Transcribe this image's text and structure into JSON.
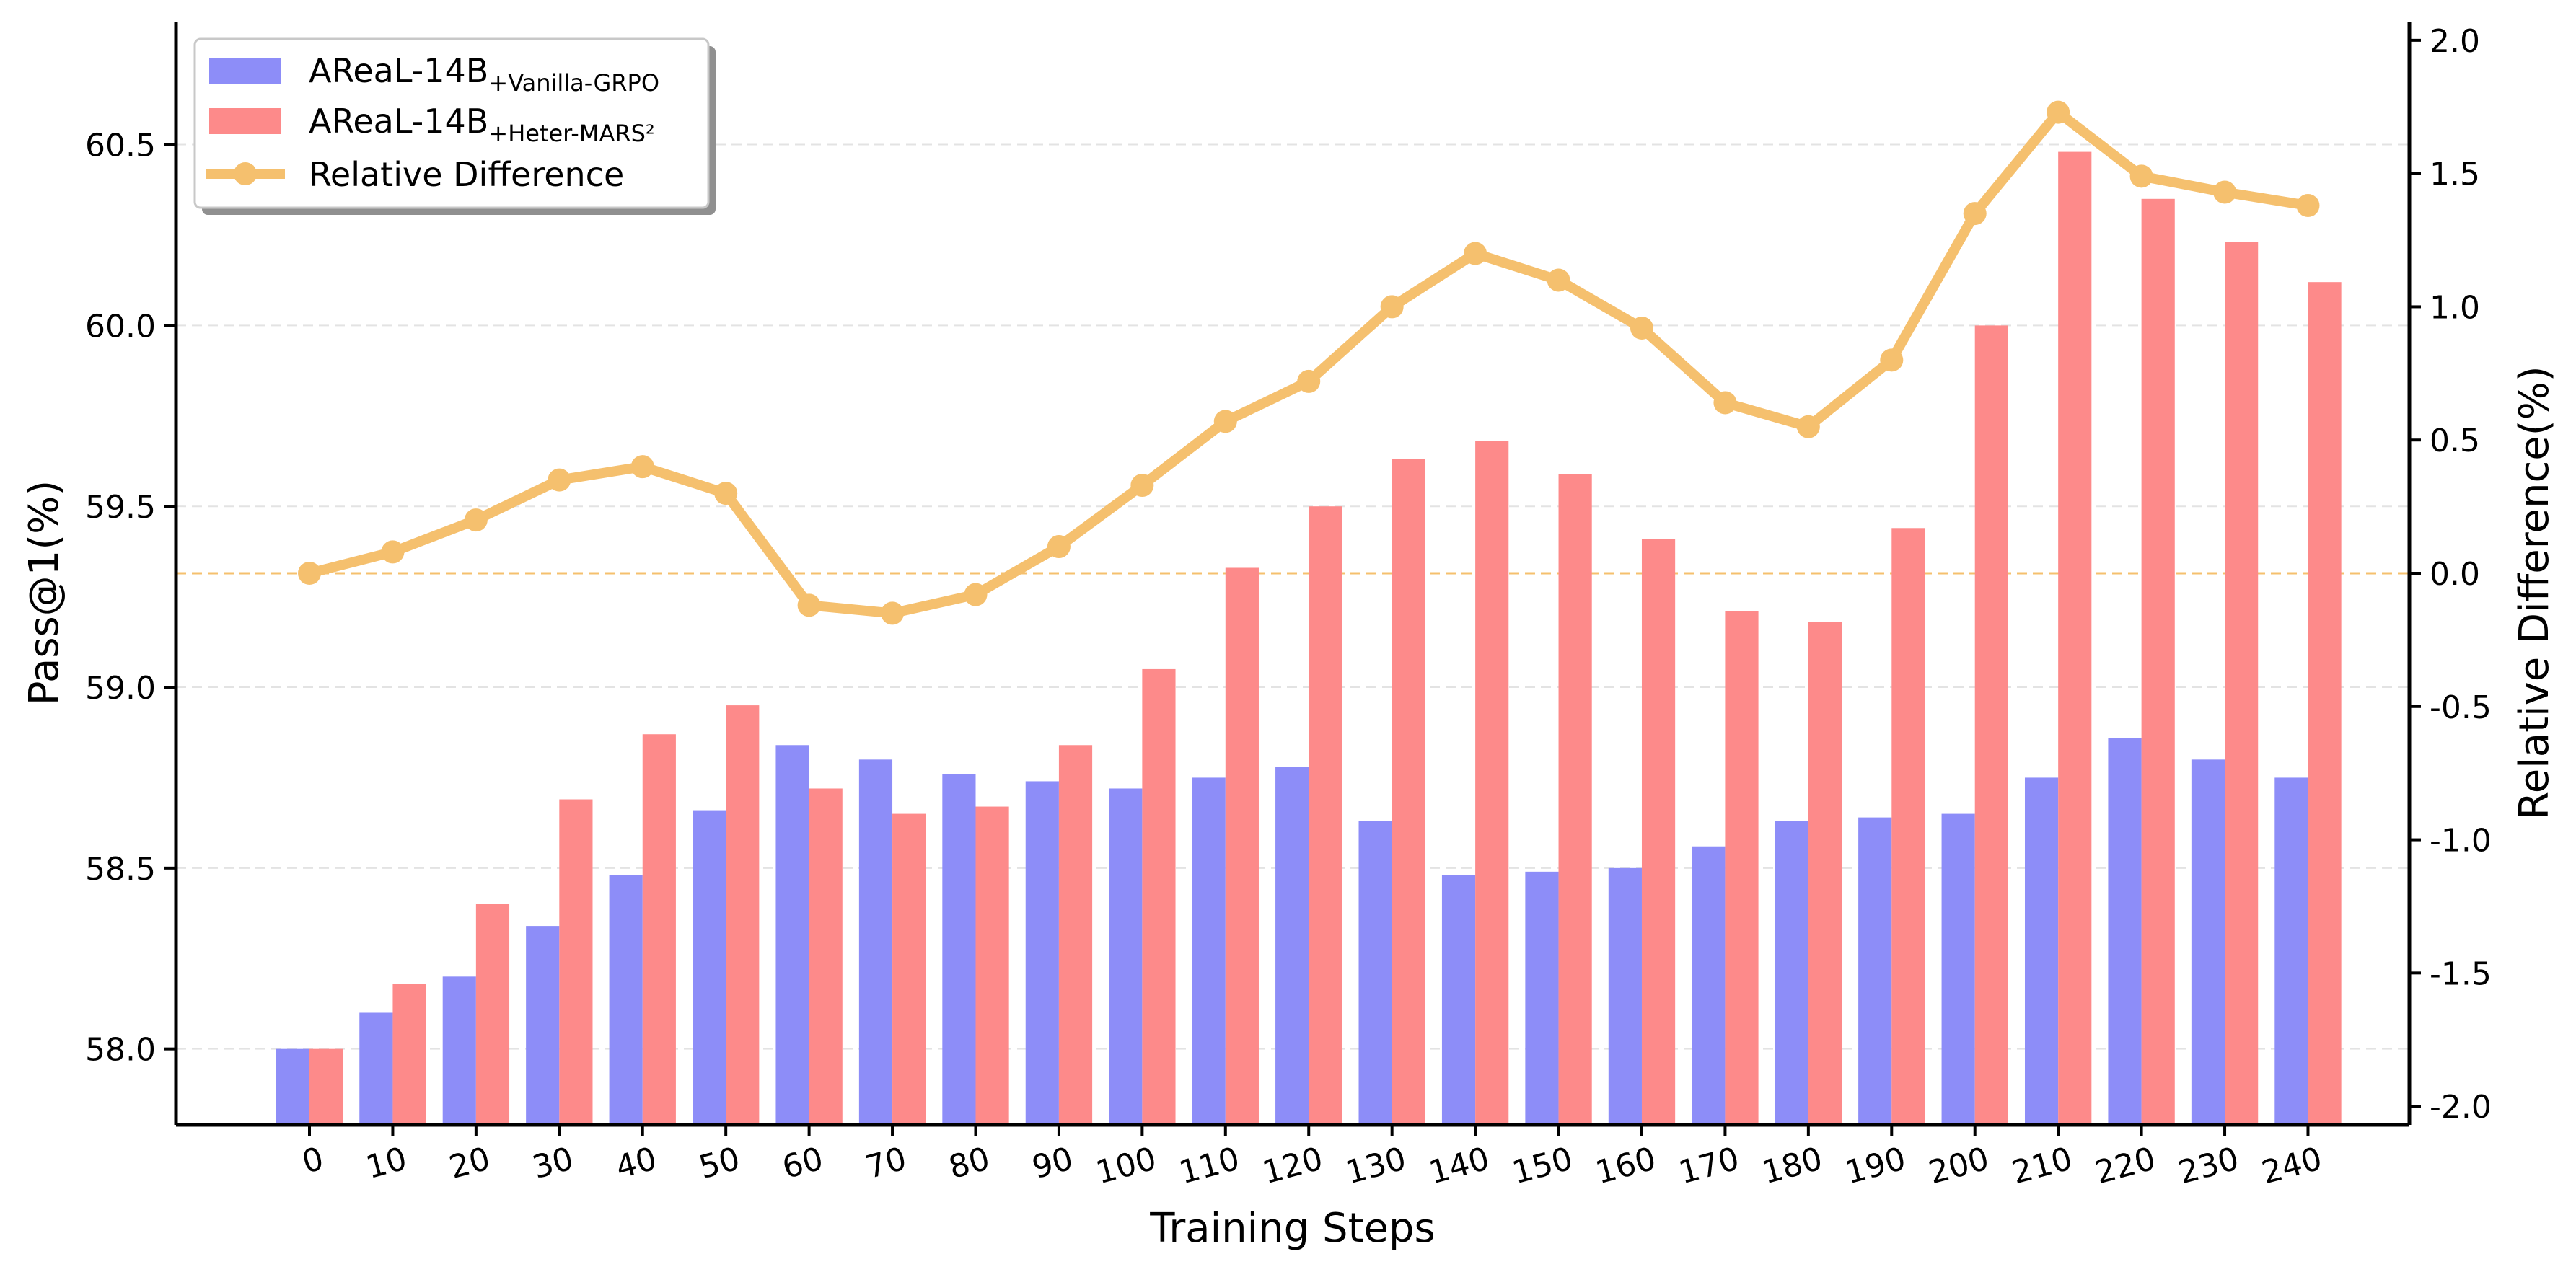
{
  "chart_data": {
    "type": "bar",
    "title": "",
    "xlabel": "Training Steps",
    "ylabel": "Pass@1(%)",
    "ylabel_right": "Relative Difference(%)",
    "categories": [
      "0",
      "10",
      "20",
      "30",
      "40",
      "50",
      "60",
      "70",
      "80",
      "90",
      "100",
      "110",
      "120",
      "130",
      "140",
      "150",
      "160",
      "170",
      "180",
      "190",
      "200",
      "210",
      "220",
      "230",
      "240"
    ],
    "ylim": [
      57.79,
      60.84
    ],
    "ylim_right": [
      -2.07,
      2.07
    ],
    "yticks": [
      58.0,
      58.5,
      59.0,
      59.5,
      60.0,
      60.5
    ],
    "yticks_labels": [
      "58.0",
      "58.5",
      "59.0",
      "59.5",
      "60.0",
      "60.5"
    ],
    "yticks_right": [
      -2.0,
      -1.5,
      -1.0,
      -0.5,
      0.0,
      0.5,
      1.0,
      1.5,
      2.0
    ],
    "yticks_right_labels": [
      "-2.0",
      "-1.5",
      "-1.0",
      "-0.5",
      "0.0",
      "0.5",
      "1.0",
      "1.5",
      "2.0"
    ],
    "grid": true,
    "legend_position": "top-left",
    "series": [
      {
        "name": "AReaL-14B",
        "name_sub": "+Vanilla-GRPO",
        "kind": "bar",
        "color": "#8d8df8",
        "values": [
          58.0,
          58.1,
          58.2,
          58.34,
          58.48,
          58.66,
          58.84,
          58.8,
          58.76,
          58.74,
          58.72,
          58.75,
          58.78,
          58.63,
          58.48,
          58.49,
          58.5,
          58.56,
          58.63,
          58.64,
          58.65,
          58.75,
          58.86,
          58.8,
          58.75
        ]
      },
      {
        "name": "AReaL-14B",
        "name_sub": "+Heter-MARS²",
        "kind": "bar",
        "color": "#fd8a8a",
        "values": [
          58.0,
          58.18,
          58.4,
          58.69,
          58.87,
          58.95,
          58.72,
          58.65,
          58.67,
          58.84,
          59.05,
          59.33,
          59.5,
          59.63,
          59.68,
          59.59,
          59.41,
          59.21,
          59.18,
          59.44,
          60.0,
          60.48,
          60.35,
          60.23,
          60.12
        ]
      },
      {
        "name": "Relative Difference",
        "name_sub": "",
        "kind": "line",
        "axis": "right",
        "color": "#f5c06e",
        "values": [
          0.0,
          0.08,
          0.2,
          0.35,
          0.4,
          0.3,
          -0.12,
          -0.15,
          -0.08,
          0.1,
          0.33,
          0.57,
          0.72,
          1.0,
          1.2,
          1.1,
          0.92,
          0.64,
          0.55,
          0.8,
          1.35,
          1.73,
          1.49,
          1.43,
          1.38
        ]
      }
    ],
    "reference_line": {
      "axis": "right",
      "value": 0.0,
      "color": "#f5c06e"
    }
  }
}
